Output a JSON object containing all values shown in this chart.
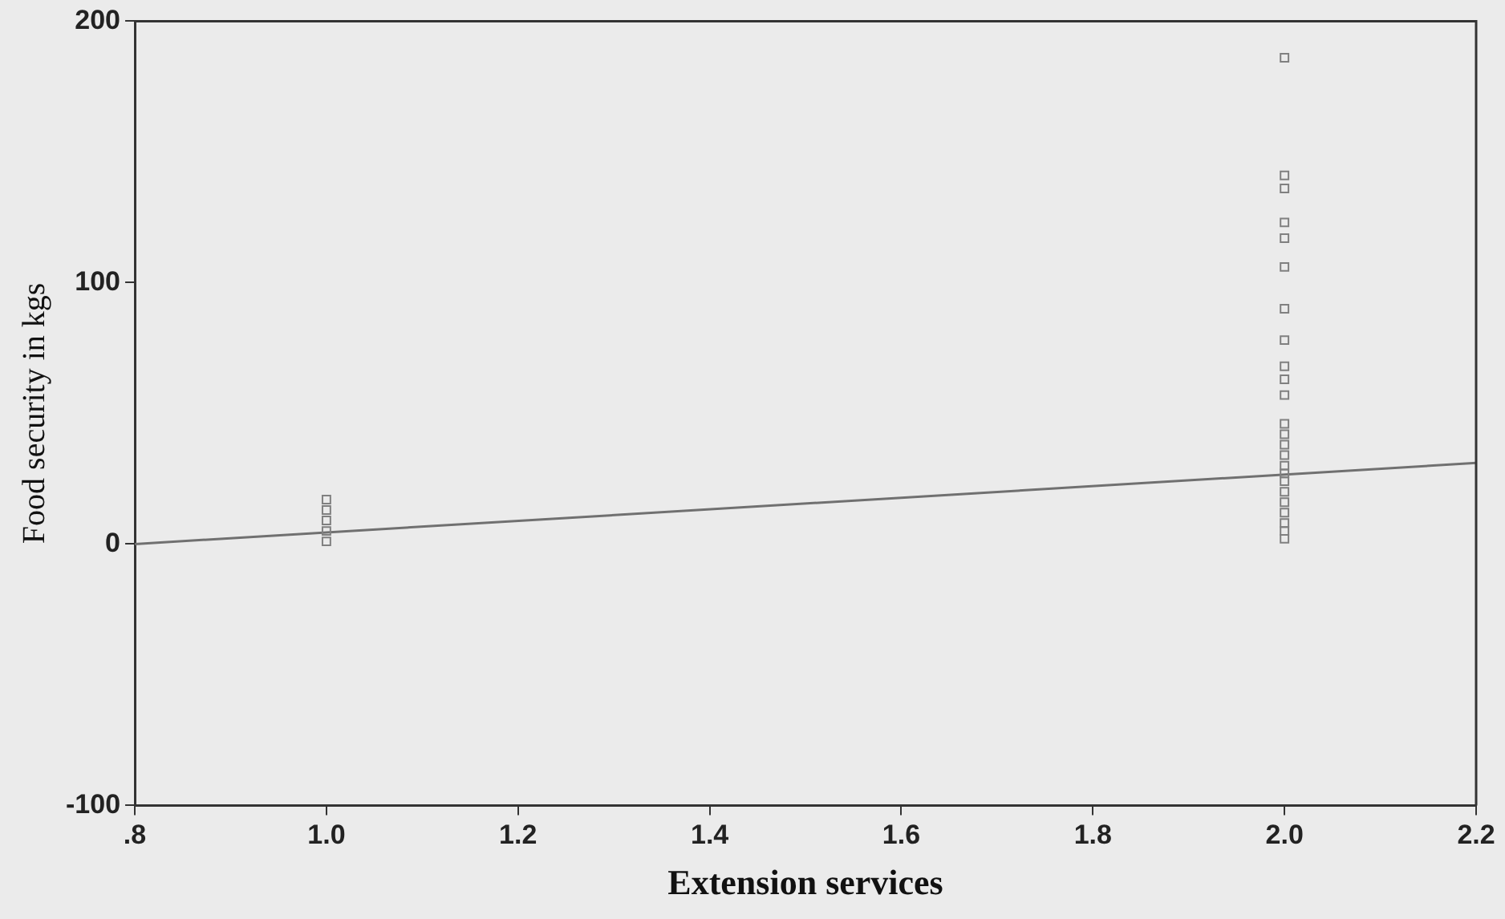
{
  "chart_data": {
    "type": "scatter",
    "xlabel": "Extension services",
    "ylabel": "Food security in kgs",
    "xlim": [
      0.8,
      2.2
    ],
    "xticks": [
      {
        "value": 0.8,
        "label": ".8"
      },
      {
        "value": 1.0,
        "label": "1.0"
      },
      {
        "value": 1.2,
        "label": "1.2"
      },
      {
        "value": 1.4,
        "label": "1.4"
      },
      {
        "value": 1.6,
        "label": "1.6"
      },
      {
        "value": 1.8,
        "label": "1.8"
      },
      {
        "value": 2.0,
        "label": "2.0"
      },
      {
        "value": 2.2,
        "label": "2.2"
      }
    ],
    "ylim": [
      -100,
      200
    ],
    "yticks": [
      -100,
      0,
      100,
      200
    ],
    "grid": false,
    "legend": false,
    "marker": "square",
    "series": [
      {
        "type": "scatter",
        "color": "#808080",
        "x": [
          1,
          1,
          1,
          1,
          1,
          2,
          2,
          2,
          2,
          2,
          2,
          2,
          2,
          2,
          2,
          2,
          2,
          2,
          2,
          2,
          2,
          2,
          2,
          2,
          2,
          2,
          2,
          2,
          2
        ],
        "values": [
          17,
          13,
          9,
          5,
          1,
          186,
          141,
          136,
          123,
          117,
          106,
          90,
          78,
          68,
          63,
          57,
          46,
          42,
          38,
          34,
          30,
          27,
          24,
          20,
          16,
          12,
          8,
          5,
          2
        ]
      },
      {
        "type": "line",
        "color": "#707070",
        "marker": "none",
        "x": [
          0.8,
          2.2
        ],
        "values": [
          0,
          31
        ]
      }
    ]
  }
}
